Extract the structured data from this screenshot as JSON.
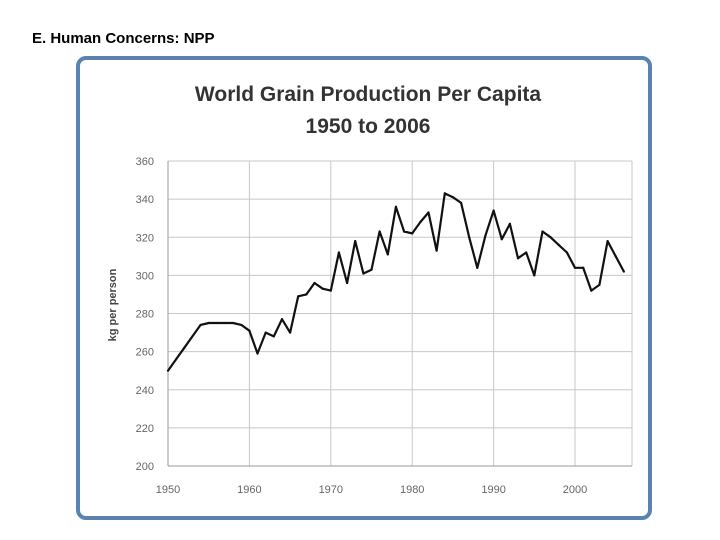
{
  "slide": {
    "heading": "E. Human Concerns: NPP"
  },
  "chart_data": {
    "type": "line",
    "title": "World Grain Production Per Capita",
    "subtitle": "1950 to 2006",
    "xlabel": "",
    "ylabel": "kg per person",
    "xlim": [
      1950,
      2007
    ],
    "ylim": [
      200,
      360
    ],
    "x_ticks": [
      1950,
      1960,
      1970,
      1980,
      1990,
      2000
    ],
    "y_ticks": [
      200,
      220,
      240,
      260,
      280,
      300,
      320,
      340,
      360
    ],
    "grid": true,
    "colors": {
      "line": "#111111",
      "grid": "#c8c8c8",
      "frame": "#5a82b5"
    },
    "series": [
      {
        "name": "World Grain Production Per Capita",
        "x": [
          1950,
          1951,
          1952,
          1953,
          1954,
          1955,
          1956,
          1957,
          1958,
          1959,
          1960,
          1961,
          1962,
          1963,
          1964,
          1965,
          1966,
          1967,
          1968,
          1969,
          1970,
          1971,
          1972,
          1973,
          1974,
          1975,
          1976,
          1977,
          1978,
          1979,
          1980,
          1981,
          1982,
          1983,
          1984,
          1985,
          1986,
          1987,
          1988,
          1989,
          1990,
          1991,
          1992,
          1993,
          1994,
          1995,
          1996,
          1997,
          1998,
          1999,
          2000,
          2001,
          2002,
          2003,
          2004,
          2005,
          2006
        ],
        "values": [
          250,
          256,
          262,
          268,
          274,
          275,
          275,
          275,
          275,
          274,
          271,
          259,
          270,
          268,
          277,
          270,
          289,
          290,
          296,
          293,
          292,
          312,
          296,
          318,
          301,
          303,
          323,
          311,
          336,
          323,
          322,
          328,
          333,
          313,
          343,
          341,
          338,
          320,
          304,
          321,
          334,
          319,
          327,
          309,
          312,
          300,
          323,
          320,
          316,
          312,
          304,
          304,
          292,
          295,
          318,
          310,
          302
        ]
      }
    ]
  }
}
